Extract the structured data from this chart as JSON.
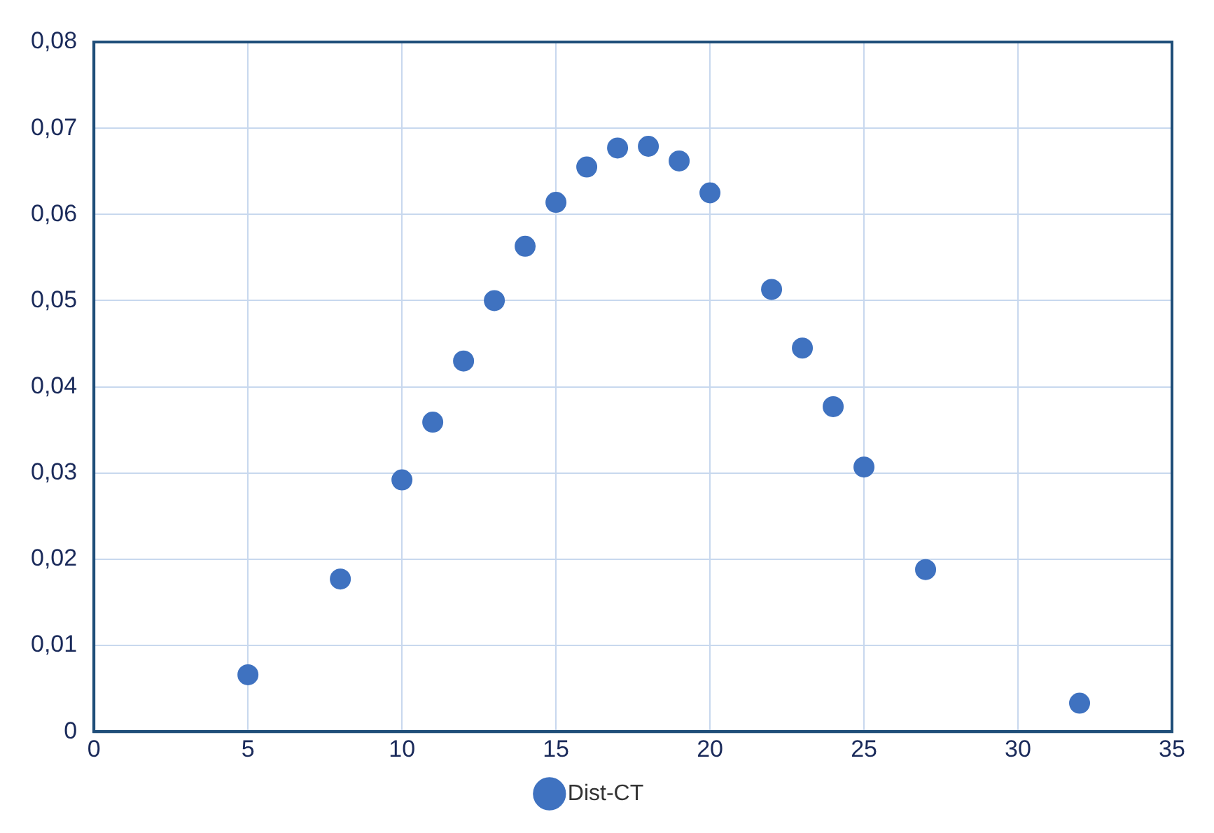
{
  "chart_data": {
    "type": "scatter",
    "x": [
      5,
      8,
      10,
      11,
      12,
      13,
      14,
      15,
      16,
      17,
      18,
      19,
      20,
      22,
      23,
      24,
      25,
      27,
      32
    ],
    "series": [
      {
        "name": "Dist-CT",
        "color": "#3f72c0",
        "values": [
          0.0066,
          0.0177,
          0.0292,
          0.0359,
          0.043,
          0.05,
          0.0563,
          0.0614,
          0.0655,
          0.0677,
          0.0679,
          0.0662,
          0.0625,
          0.0513,
          0.0445,
          0.0377,
          0.0307,
          0.0188,
          0.0033
        ]
      }
    ],
    "xlim": [
      0,
      35
    ],
    "xticks": [
      0,
      5,
      10,
      15,
      20,
      25,
      30,
      35
    ],
    "ylim": [
      0,
      0.08
    ],
    "yticks": [
      0,
      {
        "value": 0.01,
        "label": "0,01"
      },
      {
        "value": 0.02,
        "label": "0,02"
      },
      {
        "value": 0.03,
        "label": "0,03"
      },
      {
        "value": 0.04,
        "label": "0,04"
      },
      {
        "value": 0.05,
        "label": "0,05"
      },
      {
        "value": 0.06,
        "label": "0,06"
      },
      {
        "value": 0.07,
        "label": "0,07"
      },
      {
        "value": 0.08,
        "label": "0,08"
      }
    ],
    "grid": true,
    "legend": "bottom",
    "marker": "circle"
  }
}
